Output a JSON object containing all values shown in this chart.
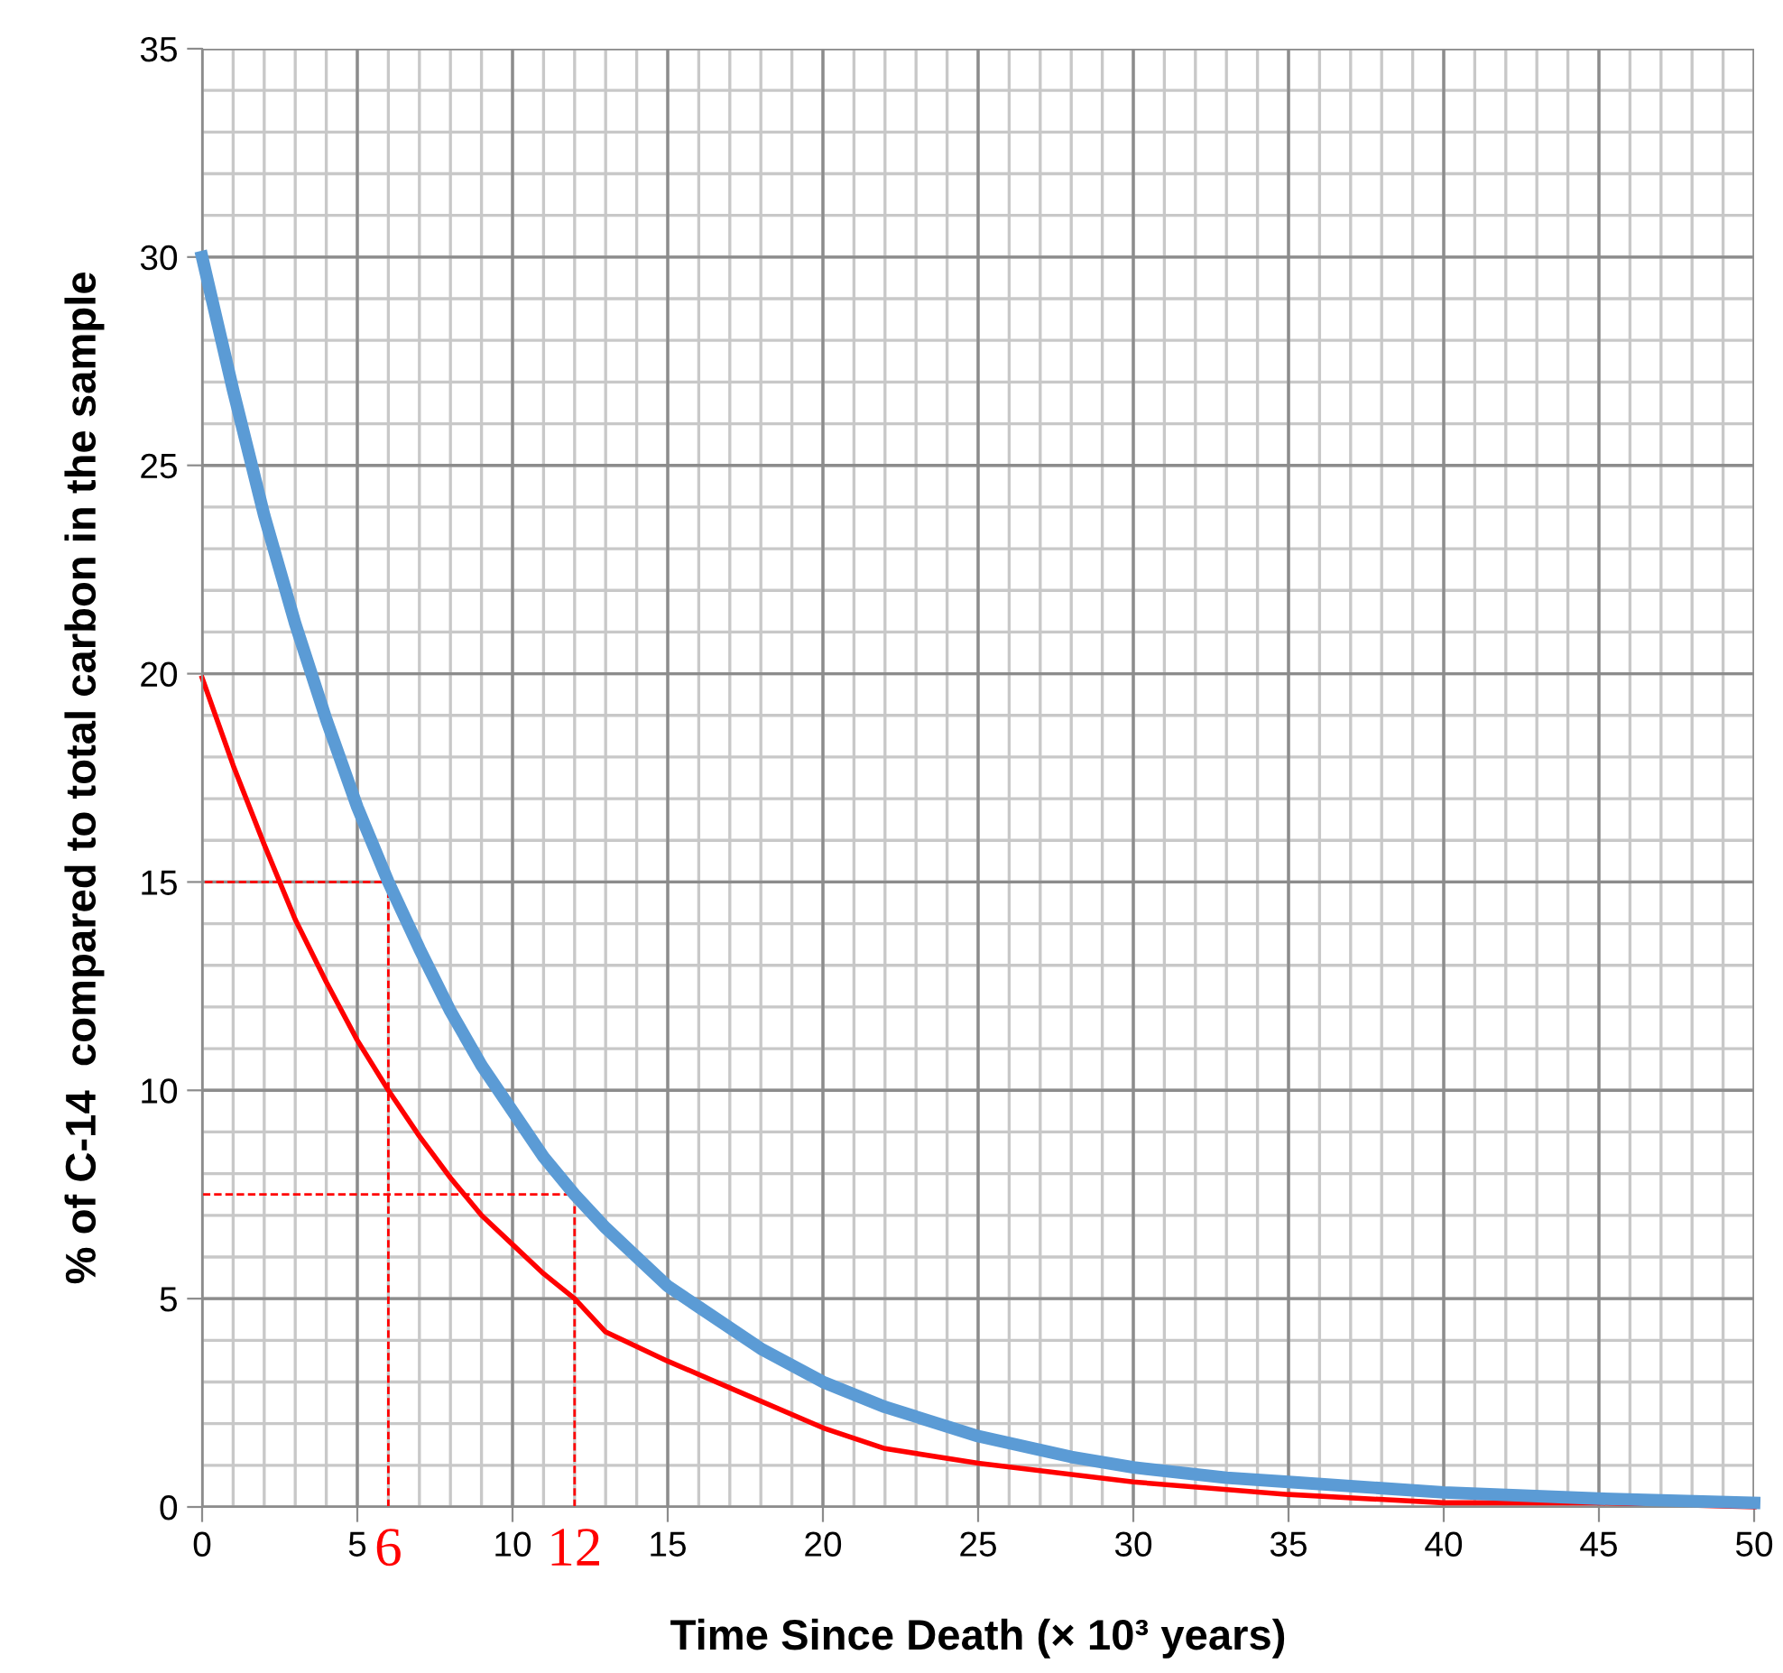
{
  "chart_data": {
    "type": "line",
    "xlabel": "Time Since Death (× 10³ years)",
    "ylabel": "% of C-14  compared to total carbon in the sample",
    "xlim": [
      0,
      50
    ],
    "ylim": [
      0,
      35
    ],
    "xticks": [
      0,
      5,
      10,
      15,
      20,
      25,
      30,
      35,
      40,
      45,
      50
    ],
    "yticks": [
      0,
      5,
      10,
      15,
      20,
      25,
      30,
      35
    ],
    "grid": true,
    "marker": "none",
    "series": [
      {
        "color": "#5b9bd5",
        "line_style": "solid",
        "x": [
          0,
          1,
          2,
          3,
          4,
          5,
          6,
          7,
          8,
          9,
          10,
          11,
          12,
          13,
          14,
          15,
          16,
          18,
          20,
          22,
          25,
          28,
          30,
          33,
          35,
          40,
          45,
          50
        ],
        "values": [
          30,
          26.8,
          23.8,
          21.2,
          18.9,
          16.8,
          15,
          13.4,
          11.9,
          10.6,
          9.5,
          8.4,
          7.5,
          6.7,
          6,
          5.3,
          4.8,
          3.8,
          3,
          2.4,
          1.7,
          1.2,
          0.95,
          0.7,
          0.6,
          0.35,
          0.2,
          0.1
        ]
      },
      {
        "color": "#ff0000",
        "line_style": "solid",
        "x": [
          0,
          1,
          2,
          3,
          4,
          5,
          6,
          7,
          8,
          9,
          10,
          11,
          12,
          13,
          15,
          17.5,
          20,
          22,
          25,
          30,
          35,
          40,
          45,
          50
        ],
        "values": [
          19.9,
          17.8,
          15.9,
          14.1,
          12.6,
          11.2,
          10,
          8.9,
          7.9,
          7,
          6.3,
          5.6,
          5,
          4.2,
          3.5,
          2.7,
          1.9,
          1.4,
          1.05,
          0.6,
          0.3,
          0.1,
          0.1,
          0
        ]
      },
      {
        "color": "#ff0000",
        "line_style": "dashed",
        "x": [
          6,
          6,
          0
        ],
        "values": [
          0,
          15,
          15
        ]
      },
      {
        "color": "#ff0000",
        "line_style": "dashed",
        "x": [
          12,
          12,
          0
        ],
        "values": [
          0,
          7.5,
          7.5
        ]
      }
    ],
    "annotations": [
      {
        "text": "6",
        "x": 6,
        "y": 0
      },
      {
        "text": "12",
        "x": 12,
        "y": 0
      }
    ]
  }
}
